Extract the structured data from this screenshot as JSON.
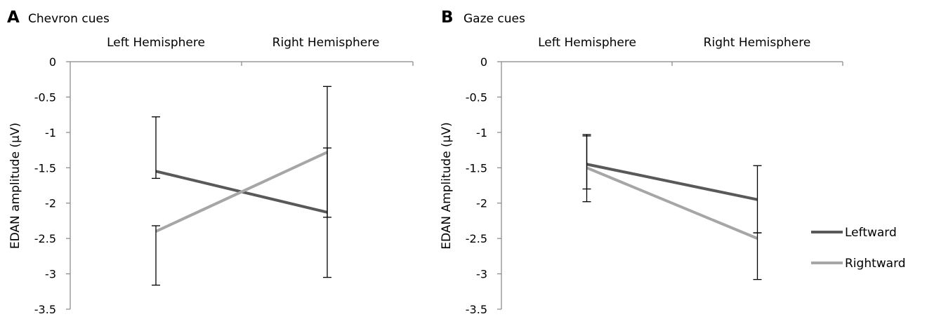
{
  "chart_data": [
    {
      "type": "line",
      "panel_letter": "A",
      "title": "Chevron cues",
      "ylabel": "EDAN amplitude (μV)",
      "categories": [
        "Left Hemisphere",
        "Right Hemisphere"
      ],
      "category_axis_position": "top",
      "ylim": [
        -3.5,
        0
      ],
      "yticks": [
        0,
        -0.5,
        -1,
        -1.5,
        -2,
        -2.5,
        -3,
        -3.5
      ],
      "grid": false,
      "series": [
        {
          "name": "Leftward",
          "color": "#595959",
          "values": [
            -1.55,
            -2.13
          ],
          "error_low": [
            -1.65,
            -2.2
          ],
          "error_high": [
            -0.78,
            -1.22
          ]
        },
        {
          "name": "Rightward",
          "color": "#a6a6a6",
          "values": [
            -2.4,
            -1.28
          ],
          "error_low": [
            -3.16,
            -3.05
          ],
          "error_high": [
            -2.32,
            -0.35
          ]
        }
      ]
    },
    {
      "type": "line",
      "panel_letter": "B",
      "title": "Gaze cues",
      "ylabel": "EDAN Amplitude (μV)",
      "categories": [
        "Left Hemisphere",
        "Right Hemisphere"
      ],
      "category_axis_position": "top",
      "ylim": [
        -3.5,
        0
      ],
      "yticks": [
        0,
        -0.5,
        -1,
        -1.5,
        -2,
        -2.5,
        -3,
        -3.5
      ],
      "grid": false,
      "legend": {
        "position": "right",
        "entries": [
          "Leftward",
          "Rightward"
        ]
      },
      "series": [
        {
          "name": "Leftward",
          "color": "#595959",
          "values": [
            -1.45,
            -1.95
          ],
          "error_low": [
            -1.8,
            -2.42
          ],
          "error_high": [
            -1.03,
            -1.47
          ]
        },
        {
          "name": "Rightward",
          "color": "#a6a6a6",
          "values": [
            -1.5,
            -2.5
          ],
          "error_low": [
            -1.98,
            -3.08
          ],
          "error_high": [
            -1.05,
            -2.42
          ]
        }
      ]
    }
  ]
}
